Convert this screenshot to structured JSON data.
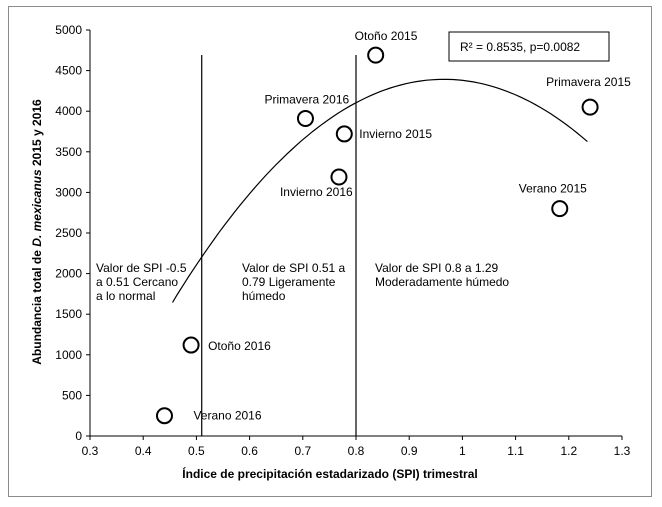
{
  "chart_data": {
    "type": "scatter",
    "title": "",
    "xlabel": "Índice de precipitación estadarizado (SPI) trimestral",
    "ylabel": {
      "prefix": "Abundancia  total de ",
      "species": "D. mexicanus",
      "suffix": " 2015 y 2016"
    },
    "xlim": [
      0.3,
      1.3
    ],
    "ylim": [
      0,
      5000
    ],
    "x_ticks": [
      "0.3",
      "0.4",
      "0.5",
      "0.6",
      "0.7",
      "0.8",
      "0.9",
      "1",
      "1.1",
      "1.2",
      "1.3"
    ],
    "y_ticks": [
      "0",
      "500",
      "1000",
      "1500",
      "2000",
      "2500",
      "3000",
      "3500",
      "4000",
      "4500",
      "5000"
    ],
    "grid": false,
    "points": [
      {
        "label": "Verano 2016",
        "x": 0.44,
        "y": 250
      },
      {
        "label": "Otoño 2016",
        "x": 0.49,
        "y": 1120
      },
      {
        "label": "Primavera 2016",
        "x": 0.705,
        "y": 3910
      },
      {
        "label": "Invierno 2016",
        "x": 0.768,
        "y": 3190
      },
      {
        "label": "Invierno 2015",
        "x": 0.778,
        "y": 3720
      },
      {
        "label": "Otoño 2015",
        "x": 0.837,
        "y": 4690
      },
      {
        "label": "Verano 2015",
        "x": 1.183,
        "y": 2800
      },
      {
        "label": "Primavera 2015",
        "x": 1.24,
        "y": 4050
      }
    ],
    "trend": {
      "type": "polynomial-2",
      "a": -10550,
      "b": 20370,
      "c": -5440,
      "x_range": [
        0.455,
        1.235
      ]
    },
    "reference_lines_x": [
      0.51,
      0.8
    ],
    "annotation": "R² = 0.8535, p=0.0082",
    "regions": [
      {
        "lines": [
          "Valor de SPI -0.5",
          "a 0.51 Cercano",
          "a lo normal"
        ]
      },
      {
        "lines": [
          "Valor de SPI 0.51 a",
          "0.79 Ligeramente",
          "húmedo"
        ]
      },
      {
        "lines": [
          "Valor de SPI 0.8 a 1.29",
          "Moderadamente húmedo"
        ]
      }
    ]
  }
}
